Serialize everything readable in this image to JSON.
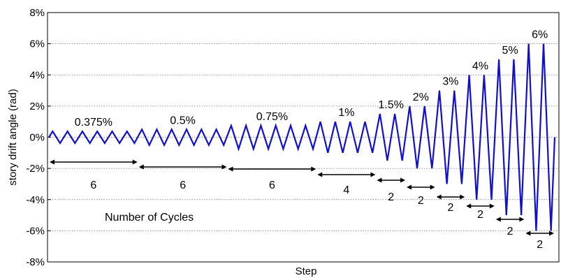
{
  "chart_data": {
    "type": "line",
    "title": "",
    "xlabel": "Step",
    "ylabel": "story drift angle (rad)",
    "ylim": [
      -8,
      8
    ],
    "yticks": [
      8,
      6,
      4,
      2,
      0,
      -2,
      -4,
      -6,
      -8
    ],
    "ytick_labels": [
      "8%",
      "6%",
      "4%",
      "2%",
      "0%",
      "-2%",
      "-4%",
      "-6%",
      "-8%"
    ],
    "grid": true,
    "line_color": "#1010cc",
    "loading_protocol": [
      {
        "amplitude": 0.375,
        "amplitude_label": "0.375%",
        "cycles": 6,
        "cycles_label": "6"
      },
      {
        "amplitude": 0.5,
        "amplitude_label": "0.5%",
        "cycles": 6,
        "cycles_label": "6"
      },
      {
        "amplitude": 0.75,
        "amplitude_label": "0.75%",
        "cycles": 6,
        "cycles_label": "6"
      },
      {
        "amplitude": 1,
        "amplitude_label": "1%",
        "cycles": 4,
        "cycles_label": "4"
      },
      {
        "amplitude": 1.5,
        "amplitude_label": "1.5%",
        "cycles": 2,
        "cycles_label": "2"
      },
      {
        "amplitude": 2,
        "amplitude_label": "2%",
        "cycles": 2,
        "cycles_label": "2"
      },
      {
        "amplitude": 3,
        "amplitude_label": "3%",
        "cycles": 2,
        "cycles_label": "2"
      },
      {
        "amplitude": 4,
        "amplitude_label": "4%",
        "cycles": 2,
        "cycles_label": "2"
      },
      {
        "amplitude": 5,
        "amplitude_label": "5%",
        "cycles": 2,
        "cycles_label": "2"
      },
      {
        "amplitude": 6,
        "amplitude_label": "6%",
        "cycles": 2,
        "cycles_label": "2"
      }
    ],
    "annotation_cycles_title": "Number of Cycles"
  }
}
